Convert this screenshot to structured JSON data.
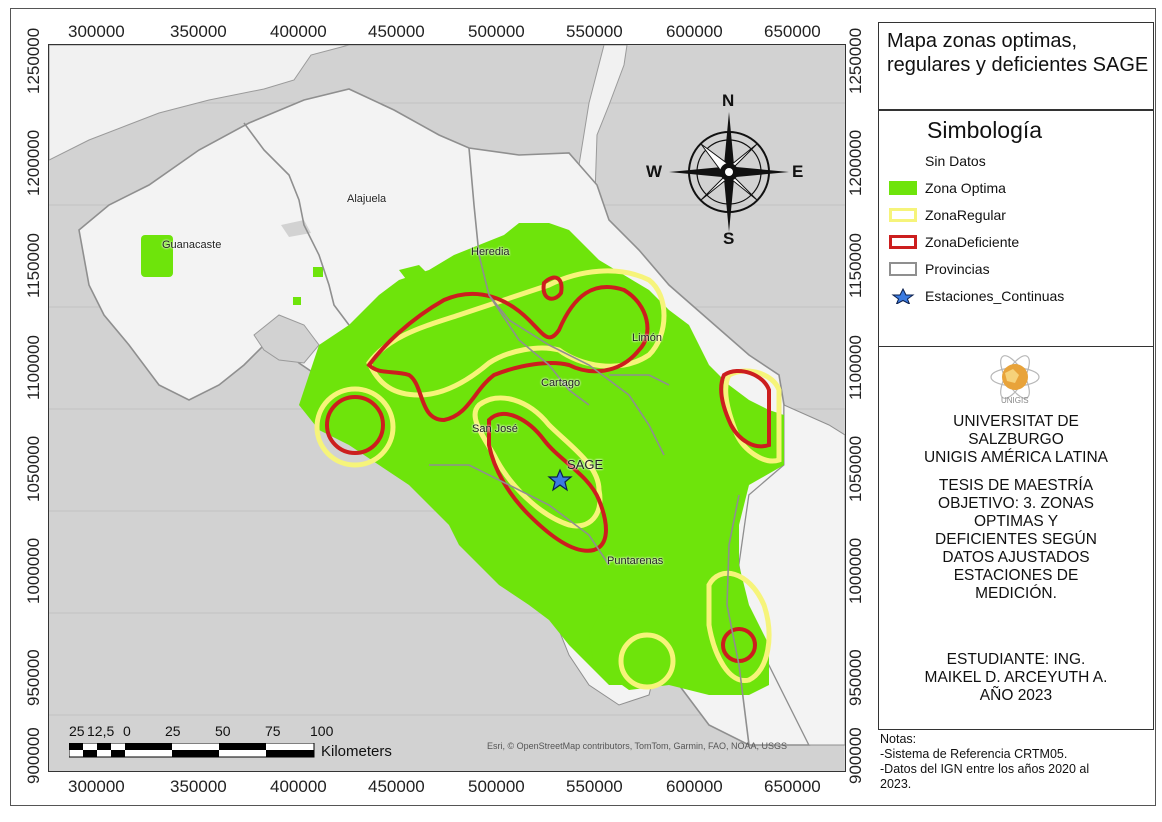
{
  "map": {
    "title": "Mapa zonas optimas, regulares y deficientes SAGE",
    "x_ticks": [
      "300000",
      "350000",
      "400000",
      "450000",
      "500000",
      "550000",
      "600000",
      "650000"
    ],
    "y_ticks": [
      "1250000",
      "1200000",
      "1150000",
      "1100000",
      "1050000",
      "1000000",
      "950000",
      "900000"
    ],
    "provinces": [
      "Guanacaste",
      "Alajuela",
      "Heredia",
      "Limón",
      "Cartago",
      "San José",
      "Puntarenas"
    ],
    "station_label": "SAGE",
    "attribution": "Esri, © OpenStreetMap contributors, TomTom, Garmin, FAO, NOAA, USGS",
    "scale_labels": [
      "25",
      "12,5",
      "0",
      "25",
      "50",
      "75",
      "100"
    ],
    "scale_unit": "Kilometers",
    "compass": {
      "n": "N",
      "s": "S",
      "e": "E",
      "w": "W"
    },
    "colors": {
      "zone_optima": "#6ee40b",
      "zone_regular": "#f6f47a",
      "zone_deficiente": "#cc1e1e",
      "land": "#f3f3f3",
      "sea": "#d2d2d2",
      "provinces": "#8f8f8f"
    }
  },
  "legend": {
    "heading": "Simbología",
    "items": [
      {
        "label": "Sin Datos",
        "swatch": "none"
      },
      {
        "label": "Zona Optima",
        "swatch": "fill"
      },
      {
        "label": "ZonaRegular",
        "swatch": "yellow"
      },
      {
        "label": "ZonaDeficiente",
        "swatch": "red"
      },
      {
        "label": "Provincias",
        "swatch": "gray"
      },
      {
        "label": "Estaciones_Continuas",
        "swatch": "star"
      }
    ]
  },
  "institution": {
    "logo_text": "UNIGIS",
    "lines1": [
      "UNIVERSITAT DE",
      "SALZBURGO",
      "UNIGIS AMÉRICA LATINA"
    ],
    "lines2": [
      "TESIS DE MAESTRÍA",
      "OBJETIVO: 3. ZONAS",
      "OPTIMAS Y",
      "DEFICIENTES SEGÚN",
      "DATOS AJUSTADOS",
      "ESTACIONES DE",
      "MEDICIÓN."
    ],
    "lines3": [
      "ESTUDIANTE: ING.",
      "MAIKEL D. ARCEYUTH A.",
      "AÑO 2023"
    ]
  },
  "notes": {
    "heading": "Notas:",
    "lines": [
      "-Sistema de Referencia CRTM05.",
      "-Datos del IGN entre los años 2020 al",
      "2023."
    ]
  }
}
